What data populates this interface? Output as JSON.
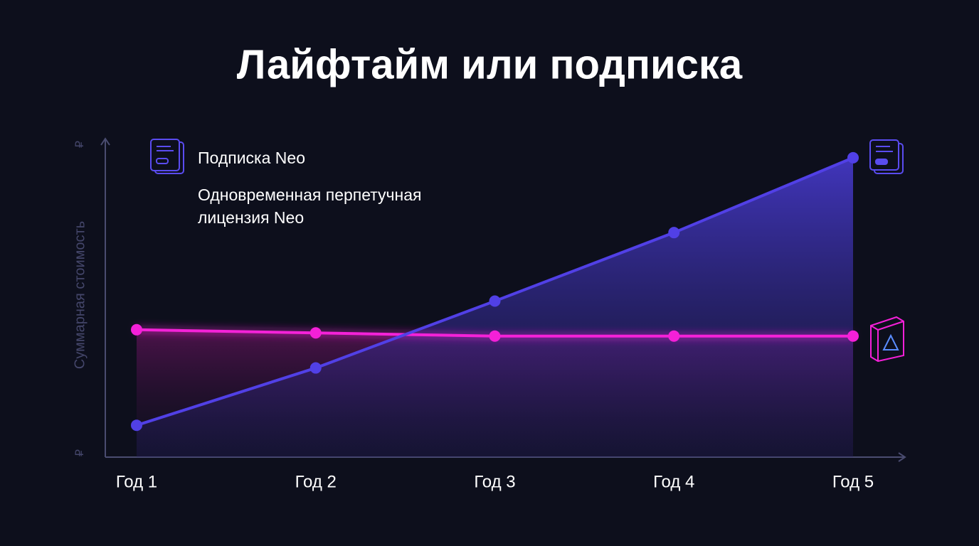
{
  "chart_data": {
    "type": "line",
    "title": "Лайфтайм или подписка",
    "y_label": "Суммарная стоимость",
    "categories": [
      "Год 1",
      "Год 2",
      "Год 3",
      "Год 4",
      "Год 5"
    ],
    "series": [
      {
        "name": "Подписка Neo",
        "color": "#5140e6",
        "values": [
          10,
          28,
          49,
          70.5,
          94
        ]
      },
      {
        "name": "Одновременная перпетучная лицензия Neo",
        "color": "#f420d8",
        "values": [
          40,
          39,
          38,
          38,
          38
        ]
      }
    ],
    "ylim": [
      0,
      100
    ],
    "yticks": [
      {
        "value": 0,
        "label": "₽"
      },
      {
        "value": 100,
        "label": "₽"
      }
    ],
    "grid": false
  }
}
